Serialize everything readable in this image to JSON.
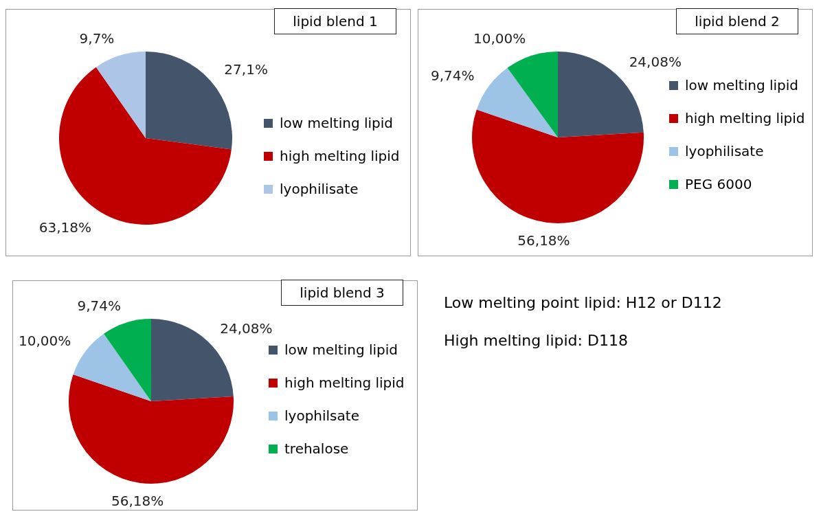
{
  "chart_data": [
    {
      "type": "pie",
      "title": "lipid blend 1",
      "categories": [
        "low melting lipid",
        "high melting lipid",
        "lyophilisate"
      ],
      "values": [
        27.1,
        63.18,
        9.7
      ],
      "value_labels": [
        "27,1%",
        "63,18%",
        "9,7%"
      ],
      "colors": [
        "#44546a",
        "#c00000",
        "#adc5e7"
      ],
      "legend": "right"
    },
    {
      "type": "pie",
      "title": "lipid blend 2",
      "categories": [
        "low melting lipid",
        "high melting lipid",
        "lyophilisate",
        "PEG 6000"
      ],
      "values": [
        24.08,
        56.18,
        9.74,
        10.0
      ],
      "value_labels": [
        "24,08%",
        "56,18%",
        "9,74%",
        "10,00%"
      ],
      "colors": [
        "#44546a",
        "#c00000",
        "#9dc3e6",
        "#00b050"
      ],
      "legend": "right"
    },
    {
      "type": "pie",
      "title": "lipid blend 3",
      "categories": [
        "low melting lipid",
        "high melting lipid",
        "lyophilsate",
        "trehalose"
      ],
      "values": [
        24.08,
        56.18,
        10.0,
        9.74
      ],
      "value_labels": [
        "24,08%",
        "56,18%",
        "10,00%",
        "9,74%"
      ],
      "colors": [
        "#44546a",
        "#c00000",
        "#9dc3e6",
        "#00b050"
      ],
      "legend": "right"
    },
    {
      "type": "other",
      "annotations": [
        "Low melting point lipid: H12 or D112",
        "High melting lipid: D118"
      ]
    }
  ]
}
